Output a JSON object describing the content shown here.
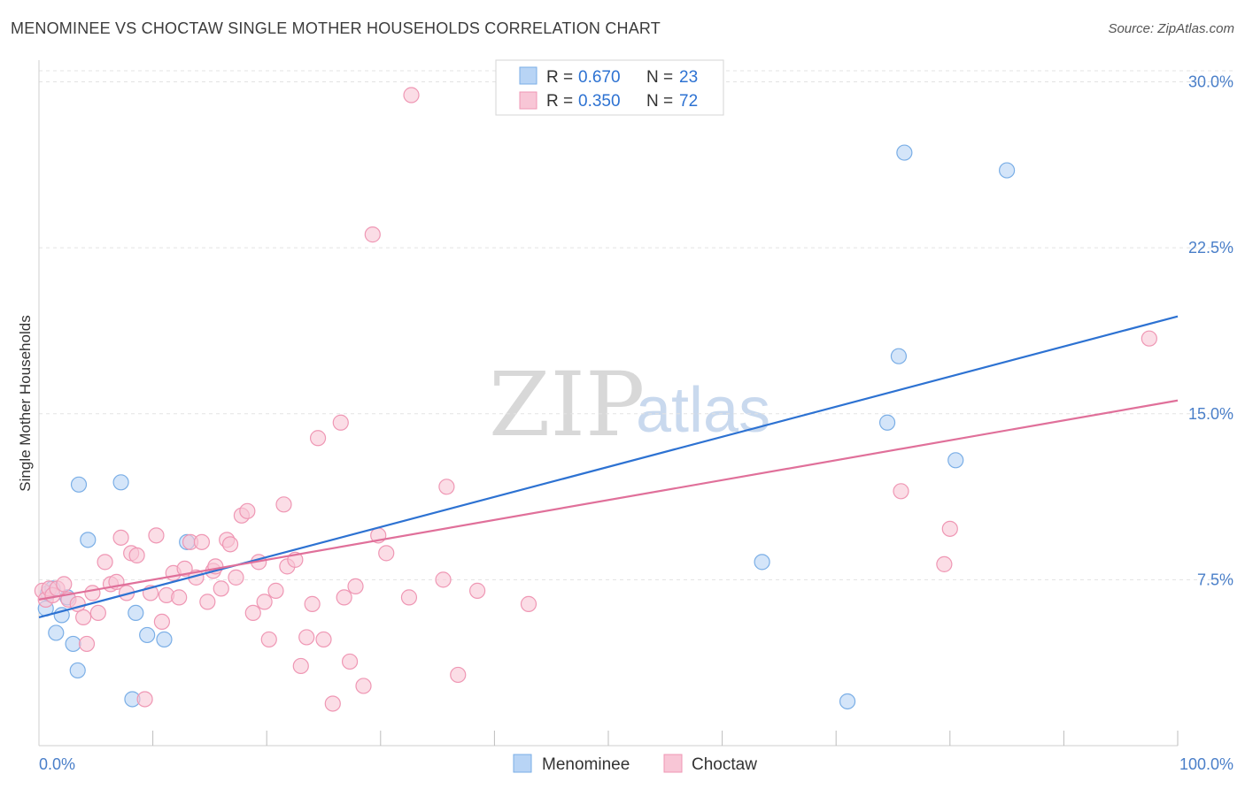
{
  "chart_data": {
    "type": "scatter",
    "title": "MENOMINEE VS CHOCTAW SINGLE MOTHER HOUSEHOLDS CORRELATION CHART",
    "source": "Source: ZipAtlas.com",
    "xlabel": "",
    "ylabel": "Single Mother Households",
    "xlim": [
      0,
      100
    ],
    "ylim": [
      0,
      30
    ],
    "x_tick_labels": [
      "0.0%",
      "100.0%"
    ],
    "y_ticks": [
      7.5,
      15.0,
      22.5,
      30.0
    ],
    "y_tick_labels": [
      "7.5%",
      "15.0%",
      "22.5%",
      "30.0%"
    ],
    "watermark": {
      "zip": "ZIP",
      "atlas": "atlas"
    },
    "legend": [
      {
        "r_label": "R =",
        "r_value": "0.670",
        "n_label": "N =",
        "n_value": "23"
      },
      {
        "r_label": "R =",
        "r_value": "0.350",
        "n_label": "N =",
        "n_value": "72"
      }
    ],
    "colors": {
      "menominee_fill": "#b8d4f5",
      "menominee_stroke": "#7aaee6",
      "menominee_line": "#2d72d2",
      "choctaw_fill": "#f8c6d6",
      "choctaw_stroke": "#ef97b4",
      "choctaw_line": "#e0709a",
      "tick_text": "#4a7fc9",
      "grid": "#e3e3e3"
    },
    "series": [
      {
        "name": "Menominee",
        "trend": {
          "x": [
            0,
            100
          ],
          "y": [
            5.8,
            19.4
          ]
        },
        "points": [
          [
            0.6,
            6.2
          ],
          [
            0.8,
            6.9
          ],
          [
            1.2,
            7.1
          ],
          [
            1.5,
            5.1
          ],
          [
            2.0,
            5.9
          ],
          [
            2.5,
            6.7
          ],
          [
            3.0,
            4.6
          ],
          [
            3.4,
            3.4
          ],
          [
            3.5,
            11.8
          ],
          [
            4.3,
            9.3
          ],
          [
            7.2,
            11.9
          ],
          [
            8.2,
            2.1
          ],
          [
            8.5,
            6.0
          ],
          [
            9.5,
            5.0
          ],
          [
            11.0,
            4.8
          ],
          [
            13.0,
            9.2
          ],
          [
            63.5,
            8.3
          ],
          [
            71.0,
            2.0
          ],
          [
            74.5,
            14.6
          ],
          [
            75.5,
            17.6
          ],
          [
            76.0,
            26.8
          ],
          [
            80.5,
            12.9
          ],
          [
            85.0,
            26.0
          ]
        ]
      },
      {
        "name": "Choctaw",
        "trend": {
          "x": [
            0,
            100
          ],
          "y": [
            6.6,
            15.6
          ]
        },
        "points": [
          [
            0.3,
            7.0
          ],
          [
            0.6,
            6.6
          ],
          [
            0.9,
            7.1
          ],
          [
            1.2,
            6.8
          ],
          [
            1.6,
            7.1
          ],
          [
            2.2,
            7.3
          ],
          [
            2.6,
            6.6
          ],
          [
            3.4,
            6.4
          ],
          [
            3.9,
            5.8
          ],
          [
            4.2,
            4.6
          ],
          [
            4.7,
            6.9
          ],
          [
            5.2,
            6.0
          ],
          [
            5.8,
            8.3
          ],
          [
            6.3,
            7.3
          ],
          [
            6.8,
            7.4
          ],
          [
            7.2,
            9.4
          ],
          [
            7.7,
            6.9
          ],
          [
            8.1,
            8.7
          ],
          [
            8.6,
            8.6
          ],
          [
            9.3,
            2.1
          ],
          [
            9.8,
            6.9
          ],
          [
            10.3,
            9.5
          ],
          [
            10.8,
            5.6
          ],
          [
            11.2,
            6.8
          ],
          [
            11.8,
            7.8
          ],
          [
            12.3,
            6.7
          ],
          [
            12.8,
            8.0
          ],
          [
            13.3,
            9.2
          ],
          [
            13.8,
            7.6
          ],
          [
            14.3,
            9.2
          ],
          [
            14.8,
            6.5
          ],
          [
            15.3,
            7.9
          ],
          [
            15.5,
            8.1
          ],
          [
            16.0,
            7.1
          ],
          [
            16.5,
            9.3
          ],
          [
            16.8,
            9.1
          ],
          [
            17.3,
            7.6
          ],
          [
            17.8,
            10.4
          ],
          [
            18.3,
            10.6
          ],
          [
            18.8,
            6.0
          ],
          [
            19.3,
            8.3
          ],
          [
            19.8,
            6.5
          ],
          [
            20.2,
            4.8
          ],
          [
            20.8,
            7.0
          ],
          [
            21.5,
            10.9
          ],
          [
            21.8,
            8.1
          ],
          [
            22.5,
            8.4
          ],
          [
            23.0,
            3.6
          ],
          [
            23.5,
            4.9
          ],
          [
            24.0,
            6.4
          ],
          [
            24.5,
            13.9
          ],
          [
            25.0,
            4.8
          ],
          [
            25.8,
            1.9
          ],
          [
            26.5,
            14.6
          ],
          [
            26.8,
            6.7
          ],
          [
            27.3,
            3.8
          ],
          [
            27.8,
            7.2
          ],
          [
            28.5,
            2.7
          ],
          [
            29.3,
            23.1
          ],
          [
            29.8,
            9.5
          ],
          [
            30.5,
            8.7
          ],
          [
            32.5,
            6.7
          ],
          [
            32.7,
            29.4
          ],
          [
            35.5,
            7.5
          ],
          [
            35.8,
            11.7
          ],
          [
            36.8,
            3.2
          ],
          [
            38.5,
            7.0
          ],
          [
            43.0,
            6.4
          ],
          [
            75.7,
            11.5
          ],
          [
            79.5,
            8.2
          ],
          [
            80.0,
            9.8
          ],
          [
            97.5,
            18.4
          ]
        ]
      }
    ]
  }
}
